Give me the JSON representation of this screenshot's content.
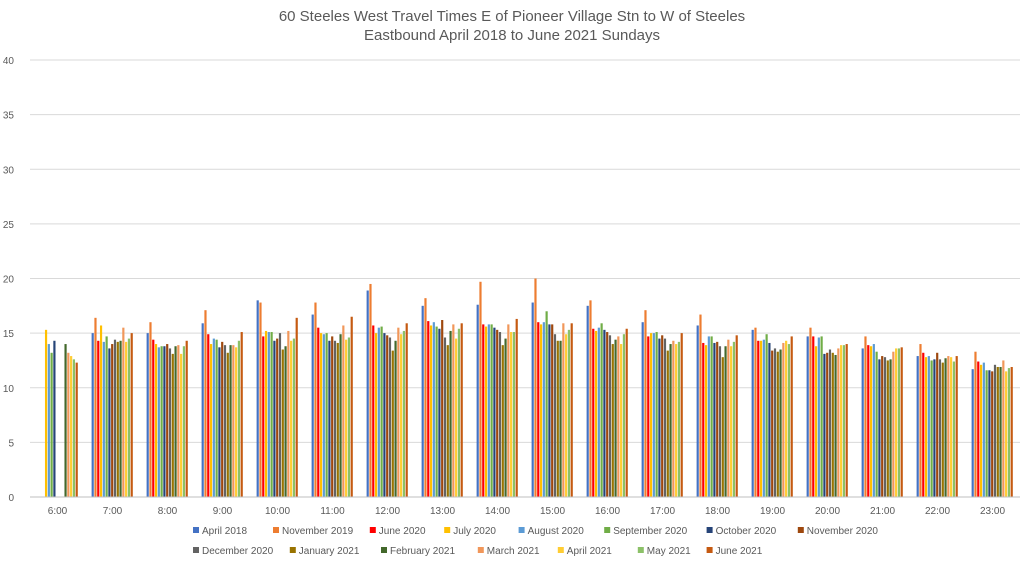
{
  "chart_data": {
    "type": "bar",
    "title": "60 Steeles West Travel Times E of Pioneer Village Stn to W of Steeles",
    "subtitle": "Eastbound April 2018 to June 2021 Sundays",
    "xlabel": "",
    "ylabel": "",
    "ylim": [
      0,
      40
    ],
    "yticks": [
      "0",
      "5",
      "10",
      "15",
      "20",
      "25",
      "30",
      "35",
      "40"
    ],
    "grid": true,
    "legend_position": "bottom",
    "categories": [
      "6:00",
      "7:00",
      "8:00",
      "9:00",
      "10:00",
      "11:00",
      "12:00",
      "13:00",
      "14:00",
      "15:00",
      "16:00",
      "17:00",
      "18:00",
      "19:00",
      "20:00",
      "21:00",
      "22:00",
      "23:00"
    ],
    "series": [
      {
        "name": "April 2018",
        "color": "#4472C4",
        "values": [
          null,
          15.0,
          15.0,
          15.9,
          18.0,
          16.7,
          18.9,
          17.5,
          17.6,
          17.8,
          17.5,
          16.0,
          15.7,
          15.3,
          14.7,
          13.6,
          12.9,
          11.7
        ]
      },
      {
        "name": "November 2019",
        "color": "#ED7D31",
        "values": [
          null,
          16.4,
          16.0,
          17.1,
          17.8,
          17.8,
          19.5,
          18.2,
          19.7,
          20.0,
          18.0,
          17.1,
          16.7,
          15.5,
          15.5,
          14.7,
          14.0,
          13.3
        ]
      },
      {
        "name": "June 2020",
        "color": "#FF0000",
        "values": [
          null,
          14.3,
          14.4,
          14.9,
          14.7,
          15.5,
          15.7,
          16.1,
          15.8,
          16.0,
          15.4,
          14.7,
          14.1,
          14.3,
          14.7,
          13.9,
          13.2,
          12.4
        ]
      },
      {
        "name": "July 2020",
        "color": "#FFC000",
        "values": [
          15.3,
          15.7,
          14.0,
          14.0,
          15.2,
          15.0,
          15.0,
          15.7,
          15.6,
          15.8,
          15.2,
          15.0,
          13.9,
          14.3,
          13.8,
          13.8,
          12.8,
          12.1
        ]
      },
      {
        "name": "August 2020",
        "color": "#5B9BD5",
        "values": [
          14.0,
          14.2,
          13.7,
          14.5,
          15.1,
          14.9,
          15.5,
          16.0,
          15.8,
          16.0,
          15.5,
          15.0,
          14.7,
          14.4,
          14.6,
          14.0,
          12.9,
          12.3
        ]
      },
      {
        "name": "September 2020",
        "color": "#70AD47",
        "values": [
          13.2,
          14.7,
          13.8,
          14.4,
          15.1,
          15.0,
          15.6,
          15.6,
          15.8,
          17.0,
          15.9,
          15.1,
          14.7,
          14.9,
          14.7,
          13.3,
          12.5,
          11.6
        ]
      },
      {
        "name": "October 2020",
        "color": "#264478",
        "values": [
          14.3,
          13.6,
          13.8,
          13.7,
          14.3,
          14.3,
          15.0,
          15.4,
          15.5,
          15.8,
          15.3,
          14.5,
          14.1,
          14.1,
          13.1,
          12.6,
          12.6,
          11.6
        ]
      },
      {
        "name": "November 2020",
        "color": "#9E480E",
        "values": [
          null,
          14.0,
          14.0,
          14.2,
          14.5,
          14.7,
          14.8,
          16.2,
          15.3,
          15.8,
          15.1,
          14.8,
          14.2,
          13.4,
          13.2,
          12.9,
          13.2,
          11.5
        ]
      },
      {
        "name": "December 2020",
        "color": "#636363",
        "values": [
          null,
          14.4,
          13.6,
          13.9,
          15.0,
          14.3,
          14.6,
          14.6,
          15.1,
          14.9,
          14.8,
          14.5,
          13.8,
          13.6,
          13.5,
          12.8,
          12.6,
          12.1
        ]
      },
      {
        "name": "January 2021",
        "color": "#997300",
        "values": [
          null,
          14.2,
          13.1,
          13.2,
          13.5,
          14.1,
          13.4,
          13.9,
          13.9,
          14.3,
          14.0,
          13.4,
          12.8,
          13.3,
          13.2,
          12.5,
          12.3,
          11.9
        ]
      },
      {
        "name": "February 2021",
        "color": "#43682B",
        "values": [
          14.0,
          14.3,
          13.8,
          13.9,
          13.8,
          14.9,
          14.3,
          15.2,
          14.5,
          14.3,
          14.4,
          14.0,
          13.8,
          13.5,
          13.0,
          12.6,
          12.7,
          11.9
        ]
      },
      {
        "name": "March 2021",
        "color": "#F1975A",
        "values": [
          13.2,
          15.5,
          13.9,
          13.9,
          15.2,
          15.7,
          15.5,
          15.8,
          15.8,
          15.9,
          14.7,
          14.3,
          14.4,
          14.1,
          13.6,
          13.3,
          12.9,
          12.5
        ]
      },
      {
        "name": "April 2021",
        "color": "#FFCD33",
        "values": [
          12.9,
          14.2,
          13.1,
          13.7,
          14.3,
          14.4,
          14.9,
          14.5,
          15.1,
          14.9,
          14.0,
          14.0,
          13.8,
          14.3,
          13.9,
          13.6,
          12.8,
          11.5
        ]
      },
      {
        "name": "May 2021",
        "color": "#8CC168",
        "values": [
          12.6,
          14.5,
          13.8,
          14.3,
          14.5,
          14.6,
          15.2,
          15.4,
          15.1,
          15.3,
          14.9,
          14.2,
          14.2,
          14.0,
          13.9,
          13.6,
          12.4,
          11.8
        ]
      },
      {
        "name": "June 2021",
        "color": "#C55A11",
        "values": [
          12.3,
          15.0,
          14.3,
          15.1,
          16.4,
          16.5,
          15.9,
          15.9,
          16.3,
          15.9,
          15.4,
          15.0,
          14.8,
          14.7,
          14.0,
          13.7,
          12.9,
          11.9
        ]
      }
    ]
  }
}
